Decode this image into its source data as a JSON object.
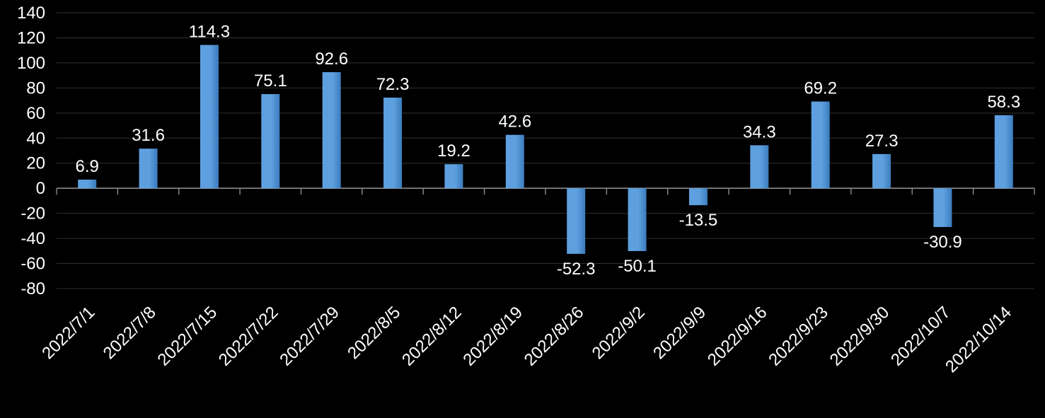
{
  "chart_data": {
    "type": "bar",
    "categories": [
      "2022/7/1",
      "2022/7/8",
      "2022/7/15",
      "2022/7/22",
      "2022/7/29",
      "2022/8/5",
      "2022/8/12",
      "2022/8/19",
      "2022/8/26",
      "2022/9/2",
      "2022/9/9",
      "2022/9/16",
      "2022/9/23",
      "2022/9/30",
      "2022/10/7",
      "2022/10/14"
    ],
    "values": [
      6.9,
      31.6,
      114.3,
      75.1,
      92.6,
      72.3,
      19.2,
      42.6,
      -52.3,
      -50.1,
      -13.5,
      34.3,
      69.2,
      27.3,
      -30.9,
      58.3
    ],
    "title": "",
    "xlabel": "",
    "ylabel": "",
    "ylim": [
      -80,
      140
    ],
    "ytick_step": 20,
    "ytick_labels": [
      "-80",
      "-60",
      "-40",
      "-20",
      "0",
      "20",
      "40",
      "60",
      "80",
      "100",
      "120",
      "140"
    ],
    "grid": true,
    "legend": false,
    "data_labels": true,
    "x_label_rotation_deg": -45,
    "colors": {
      "background": "#000000",
      "text": "#FFFFFF",
      "gridline": "#303030",
      "axis": "#8C8C8C",
      "bar_main": "#5EA0DF",
      "bar_edge": "#3B7CBE"
    }
  }
}
